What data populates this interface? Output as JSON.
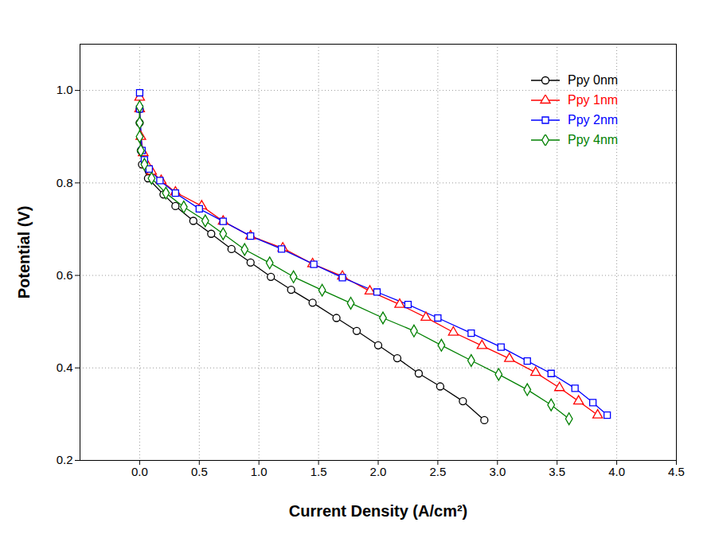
{
  "chart_data": {
    "type": "line",
    "x_label": "Current Density (A/cm²)",
    "y_label": "Potential (V)",
    "xlim": [
      -0.5,
      4.5
    ],
    "xticks": [
      {
        "value": 0,
        "label": "0.0"
      },
      {
        "value": 0.5,
        "label": "0.5"
      },
      {
        "value": 1,
        "label": "1.0"
      },
      {
        "value": 1.5,
        "label": "1.5"
      },
      {
        "value": 2,
        "label": "2.0"
      },
      {
        "value": 2.5,
        "label": "2.5"
      },
      {
        "value": 3,
        "label": "3.0"
      },
      {
        "value": 3.5,
        "label": "3.5"
      },
      {
        "value": 4,
        "label": "4.0"
      },
      {
        "value": 4.5,
        "label": "4.5"
      }
    ],
    "ylim": [
      0.2,
      1.1
    ],
    "yticks": [
      0.2,
      0.4,
      0.6,
      0.8,
      {
        "value": 1,
        "label": "1.0"
      }
    ],
    "grid": true,
    "legend": "top-right",
    "series": [
      {
        "name": "Ppy 0nm",
        "color": "#000000",
        "marker": "circle",
        "x": [
          0.0,
          0.0,
          0.01,
          0.02,
          0.07,
          0.2,
          0.3,
          0.45,
          0.6,
          0.77,
          0.93,
          1.1,
          1.27,
          1.45,
          1.65,
          1.82,
          2.0,
          2.16,
          2.34,
          2.52,
          2.71,
          2.89
        ],
        "values": [
          0.96,
          0.93,
          0.87,
          0.84,
          0.81,
          0.775,
          0.75,
          0.718,
          0.69,
          0.657,
          0.628,
          0.597,
          0.569,
          0.541,
          0.508,
          0.48,
          0.449,
          0.421,
          0.388,
          0.36,
          0.328,
          0.287
        ]
      },
      {
        "name": "Ppy 1nm",
        "color": "#ff0000",
        "marker": "triangle",
        "x": [
          0.0,
          0.0,
          0.01,
          0.03,
          0.06,
          0.1,
          0.18,
          0.3,
          0.52,
          0.7,
          0.93,
          1.2,
          1.45,
          1.7,
          1.93,
          2.18,
          2.4,
          2.63,
          2.87,
          3.1,
          3.32,
          3.52,
          3.68,
          3.84
        ],
        "values": [
          0.985,
          0.96,
          0.9,
          0.865,
          0.84,
          0.825,
          0.805,
          0.78,
          0.75,
          0.717,
          0.685,
          0.659,
          0.625,
          0.598,
          0.566,
          0.537,
          0.509,
          0.477,
          0.448,
          0.42,
          0.39,
          0.357,
          0.328,
          0.298
        ]
      },
      {
        "name": "Ppy 2nm",
        "color": "#0000ff",
        "marker": "square",
        "x": [
          0.0,
          0.0,
          0.02,
          0.04,
          0.08,
          0.17,
          0.3,
          0.5,
          0.7,
          0.93,
          1.19,
          1.46,
          1.7,
          1.99,
          2.25,
          2.5,
          2.78,
          3.03,
          3.25,
          3.45,
          3.65,
          3.8,
          3.92
        ],
        "values": [
          0.995,
          0.96,
          0.87,
          0.85,
          0.83,
          0.805,
          0.778,
          0.744,
          0.717,
          0.685,
          0.657,
          0.624,
          0.595,
          0.564,
          0.537,
          0.508,
          0.475,
          0.445,
          0.415,
          0.388,
          0.356,
          0.325,
          0.298
        ]
      },
      {
        "name": "Ppy 4nm",
        "color": "#008000",
        "marker": "diamond",
        "x": [
          0.0,
          0.0,
          0.0,
          0.01,
          0.04,
          0.1,
          0.22,
          0.37,
          0.55,
          0.7,
          0.88,
          1.09,
          1.29,
          1.53,
          1.77,
          2.04,
          2.3,
          2.53,
          2.78,
          3.01,
          3.25,
          3.45,
          3.6
        ],
        "values": [
          0.965,
          0.93,
          0.9,
          0.87,
          0.84,
          0.81,
          0.778,
          0.748,
          0.718,
          0.69,
          0.656,
          0.627,
          0.597,
          0.568,
          0.54,
          0.508,
          0.48,
          0.449,
          0.416,
          0.386,
          0.353,
          0.32,
          0.29
        ]
      }
    ]
  }
}
